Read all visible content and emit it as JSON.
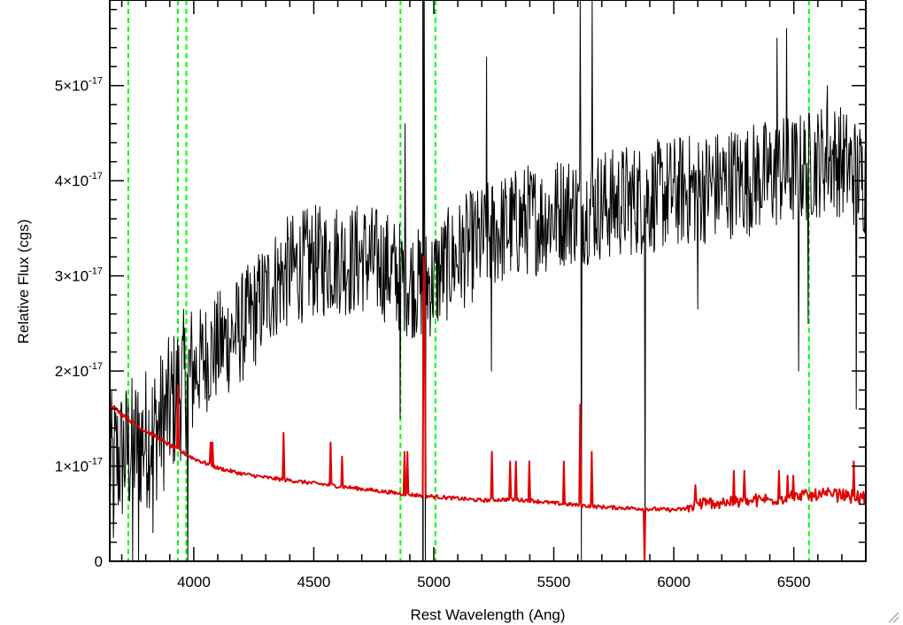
{
  "chart_data": {
    "type": "line",
    "title": "",
    "xlabel": "Rest Wavelength (Ang)",
    "ylabel": "Relative Flux (cgs)",
    "xlim": [
      3650,
      6800
    ],
    "ylim": [
      0,
      5.9e-17
    ],
    "x_ticks": [
      {
        "value": 4000,
        "label": "4000"
      },
      {
        "value": 4500,
        "label": "4500"
      },
      {
        "value": 5000,
        "label": "5000"
      },
      {
        "value": 5500,
        "label": "5500"
      },
      {
        "value": 6000,
        "label": "6000"
      },
      {
        "value": 6500,
        "label": "6500"
      }
    ],
    "y_ticks": [
      {
        "value": 0,
        "label": "0",
        "mantissa": "",
        "exponent": ""
      },
      {
        "value": 1e-17,
        "label": "1×10⁻¹⁷",
        "mantissa": "1×10",
        "exponent": "-17"
      },
      {
        "value": 2e-17,
        "label": "2×10⁻¹⁷",
        "mantissa": "2×10",
        "exponent": "-17"
      },
      {
        "value": 3e-17,
        "label": "3×10⁻¹⁷",
        "mantissa": "3×10",
        "exponent": "-17"
      },
      {
        "value": 4e-17,
        "label": "4×10⁻¹⁷",
        "mantissa": "4×10",
        "exponent": "-17"
      },
      {
        "value": 5e-17,
        "label": "5×10⁻¹⁷",
        "mantissa": "5×10",
        "exponent": "-17"
      }
    ],
    "minor_x_step": 100,
    "minor_y_step": 2e-18,
    "grid": false,
    "series": [
      {
        "color": "#000000",
        "style": "noisy-spectrum",
        "x": [
          3650,
          3700,
          3750,
          3800,
          3850,
          3900,
          3950,
          4000,
          4050,
          4100,
          4150,
          4200,
          4250,
          4300,
          4350,
          4400,
          4450,
          4500,
          4550,
          4600,
          4650,
          4700,
          4750,
          4800,
          4850,
          4900,
          4950,
          5000,
          5050,
          5100,
          5150,
          5200,
          5250,
          5300,
          5350,
          5400,
          5450,
          5500,
          5550,
          5600,
          5650,
          5700,
          5750,
          5800,
          5850,
          5900,
          5950,
          6000,
          6050,
          6100,
          6150,
          6200,
          6250,
          6300,
          6350,
          6400,
          6450,
          6500,
          6550,
          6600,
          6650,
          6700,
          6750,
          6800
        ],
        "y": [
          1e-17,
          1.1e-17,
          1.2e-17,
          1.3e-17,
          1.4e-17,
          1.6e-17,
          1.85e-17,
          2e-17,
          2.15e-17,
          2.25e-17,
          2.35e-17,
          2.45e-17,
          2.6e-17,
          2.8e-17,
          2.95e-17,
          3.05e-17,
          3.1e-17,
          3.15e-17,
          3.15e-17,
          3.2e-17,
          3.15e-17,
          3.2e-17,
          3.15e-17,
          3.1e-17,
          3e-17,
          2.95e-17,
          2.9e-17,
          2.95e-17,
          3.1e-17,
          3.2e-17,
          3.3e-17,
          3.35e-17,
          3.45e-17,
          3.5e-17,
          3.55e-17,
          3.6e-17,
          3.6e-17,
          3.65e-17,
          3.7e-17,
          3.7e-17,
          3.72e-17,
          3.75e-17,
          3.75e-17,
          3.8e-17,
          3.8e-17,
          3.82e-17,
          3.85e-17,
          3.88e-17,
          3.9e-17,
          3.9e-17,
          3.95e-17,
          3.95e-17,
          4e-17,
          4e-17,
          4.05e-17,
          4.05e-17,
          4.1e-17,
          4.1e-17,
          4.15e-17,
          4.2e-17,
          4.25e-17,
          4.2e-17,
          4.1e-17,
          4e-17
        ],
        "noise_amplitude": 6e-18,
        "spikes": [
          {
            "x": 3665,
            "y": 2.5e-18
          },
          {
            "x": 3745,
            "y": 0
          },
          {
            "x": 3770,
            "y": 0
          },
          {
            "x": 3830,
            "y": 3e-18
          },
          {
            "x": 3975,
            "y": 0
          },
          {
            "x": 4860,
            "y": 1.5e-17
          },
          {
            "x": 4880,
            "y": 4.6e-17
          },
          {
            "x": 4960,
            "y": 6.2e-17
          },
          {
            "x": 4965,
            "y": 0
          },
          {
            "x": 5220,
            "y": 5.3e-17
          },
          {
            "x": 5240,
            "y": 2e-17
          },
          {
            "x": 5610,
            "y": 6.3e-17
          },
          {
            "x": 5615,
            "y": 0
          },
          {
            "x": 5660,
            "y": 6.3e-17
          },
          {
            "x": 5880,
            "y": 0
          },
          {
            "x": 6100,
            "y": 2.65e-17
          },
          {
            "x": 6430,
            "y": 5.5e-17
          },
          {
            "x": 6470,
            "y": 5.6e-17
          },
          {
            "x": 6520,
            "y": 2e-17
          },
          {
            "x": 6560,
            "y": 2.5e-17
          },
          {
            "x": 6640,
            "y": 5e-17
          },
          {
            "x": 6760,
            "y": 1.6e-17
          }
        ]
      },
      {
        "color": "#e00000",
        "style": "model",
        "x": [
          3650,
          3700,
          3750,
          3800,
          3850,
          3900,
          3950,
          4000,
          4100,
          4200,
          4300,
          4400,
          4500,
          4600,
          4700,
          4800,
          4900,
          5000,
          5100,
          5200,
          5300,
          5400,
          5500,
          5600,
          5700,
          5800,
          5900,
          6000,
          6050,
          6100,
          6200,
          6300,
          6400,
          6500,
          6600,
          6700,
          6800
        ],
        "y": [
          1.65e-17,
          1.55e-17,
          1.45e-17,
          1.37e-17,
          1.3e-17,
          1.22e-17,
          1.15e-17,
          1.08e-17,
          9.8e-18,
          9.2e-18,
          8.8e-18,
          8.5e-18,
          8.2e-18,
          7.9e-18,
          7.6e-18,
          7.3e-18,
          7e-18,
          6.8e-18,
          6.6e-18,
          6.4e-18,
          6.5e-18,
          6.4e-18,
          6.1e-18,
          5.9e-18,
          5.7e-18,
          5.6e-18,
          5.5e-18,
          5.4e-18,
          5.5e-18,
          6e-18,
          6.2e-18,
          6.3e-18,
          6.5e-18,
          6.8e-18,
          7e-18,
          7e-18,
          6.6e-18
        ],
        "spikes": [
          {
            "x": 3935,
            "y": 1.85e-17
          },
          {
            "x": 4070,
            "y": 1.25e-17
          },
          {
            "x": 4080,
            "y": 1.25e-17
          },
          {
            "x": 4375,
            "y": 1.35e-17
          },
          {
            "x": 4570,
            "y": 1.25e-17
          },
          {
            "x": 4620,
            "y": 1.1e-17
          },
          {
            "x": 4880,
            "y": 1.15e-17
          },
          {
            "x": 4890,
            "y": 1.15e-17
          },
          {
            "x": 4960,
            "y": 3.2e-17
          },
          {
            "x": 4965,
            "y": 2.8e-17
          },
          {
            "x": 5245,
            "y": 1.15e-17
          },
          {
            "x": 5320,
            "y": 1.05e-17
          },
          {
            "x": 5345,
            "y": 1.05e-17
          },
          {
            "x": 5400,
            "y": 1.05e-17
          },
          {
            "x": 5545,
            "y": 1.05e-17
          },
          {
            "x": 5610,
            "y": 1.65e-17
          },
          {
            "x": 5660,
            "y": 1.15e-17
          },
          {
            "x": 5880,
            "y": 0
          },
          {
            "x": 6090,
            "y": 8e-18
          },
          {
            "x": 6250,
            "y": 9.5e-18
          },
          {
            "x": 6295,
            "y": 9.5e-18
          },
          {
            "x": 6440,
            "y": 9.5e-18
          },
          {
            "x": 6475,
            "y": 9e-18
          },
          {
            "x": 6500,
            "y": 9e-18
          },
          {
            "x": 6750,
            "y": 1.05e-17
          }
        ]
      }
    ],
    "vertical_lines": [
      {
        "x": 3727,
        "color": "#00ff00",
        "style": "dashed"
      },
      {
        "x": 3934,
        "color": "#00ff00",
        "style": "dashed"
      },
      {
        "x": 3969,
        "color": "#00ff00",
        "style": "dashed"
      },
      {
        "x": 4861,
        "color": "#00ff00",
        "style": "dashed"
      },
      {
        "x": 5007,
        "color": "#00ff00",
        "style": "dashed"
      },
      {
        "x": 6563,
        "color": "#00ff00",
        "style": "dashed"
      },
      {
        "x": 4955,
        "color": "#000000",
        "style": "solid"
      }
    ]
  }
}
